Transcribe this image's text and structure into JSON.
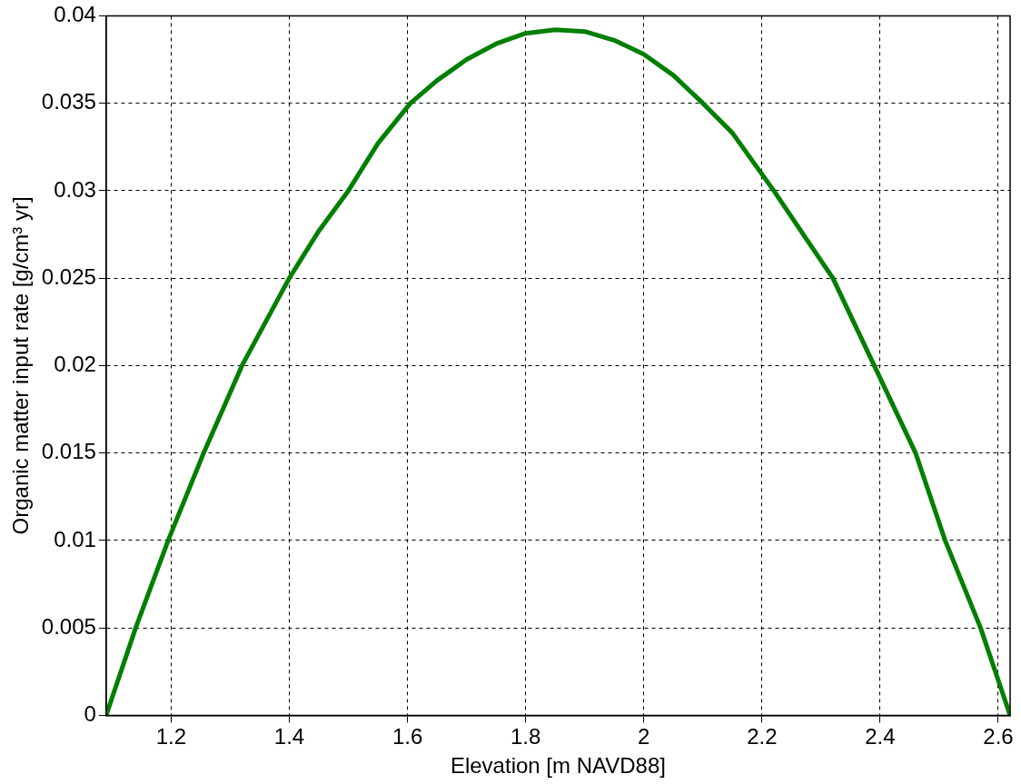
{
  "chart_data": {
    "type": "line",
    "xlabel": "Elevation [m NAVD88]",
    "ylabel": "Organic matter input rate [g/cm³ yr]",
    "xlim": [
      1.09,
      2.62
    ],
    "ylim": [
      0,
      0.04
    ],
    "xticks": [
      1.2,
      1.4,
      1.6,
      1.8,
      2,
      2.2,
      2.4,
      2.6
    ],
    "yticks": [
      0,
      0.005,
      0.01,
      0.015,
      0.02,
      0.025,
      0.03,
      0.035,
      0.04
    ],
    "grid": true,
    "legend": false,
    "marker": "none",
    "line_style": "solid",
    "series": [
      {
        "color": "#007f00",
        "x": [
          1.09,
          1.14,
          1.195,
          1.255,
          1.32,
          1.4,
          1.45,
          1.5,
          1.55,
          1.605,
          1.65,
          1.7,
          1.75,
          1.8,
          1.85,
          1.9,
          1.95,
          2.0,
          2.05,
          2.1,
          2.15,
          2.22,
          2.27,
          2.32,
          2.39,
          2.46,
          2.51,
          2.57,
          2.62
        ],
        "values": [
          0,
          0.005,
          0.01,
          0.015,
          0.02,
          0.025,
          0.0277,
          0.03,
          0.0327,
          0.035,
          0.0363,
          0.0375,
          0.0384,
          0.039,
          0.0392,
          0.0391,
          0.0386,
          0.0378,
          0.0366,
          0.035,
          0.0333,
          0.03,
          0.0275,
          0.025,
          0.02,
          0.015,
          0.01,
          0.005,
          0
        ]
      }
    ]
  }
}
